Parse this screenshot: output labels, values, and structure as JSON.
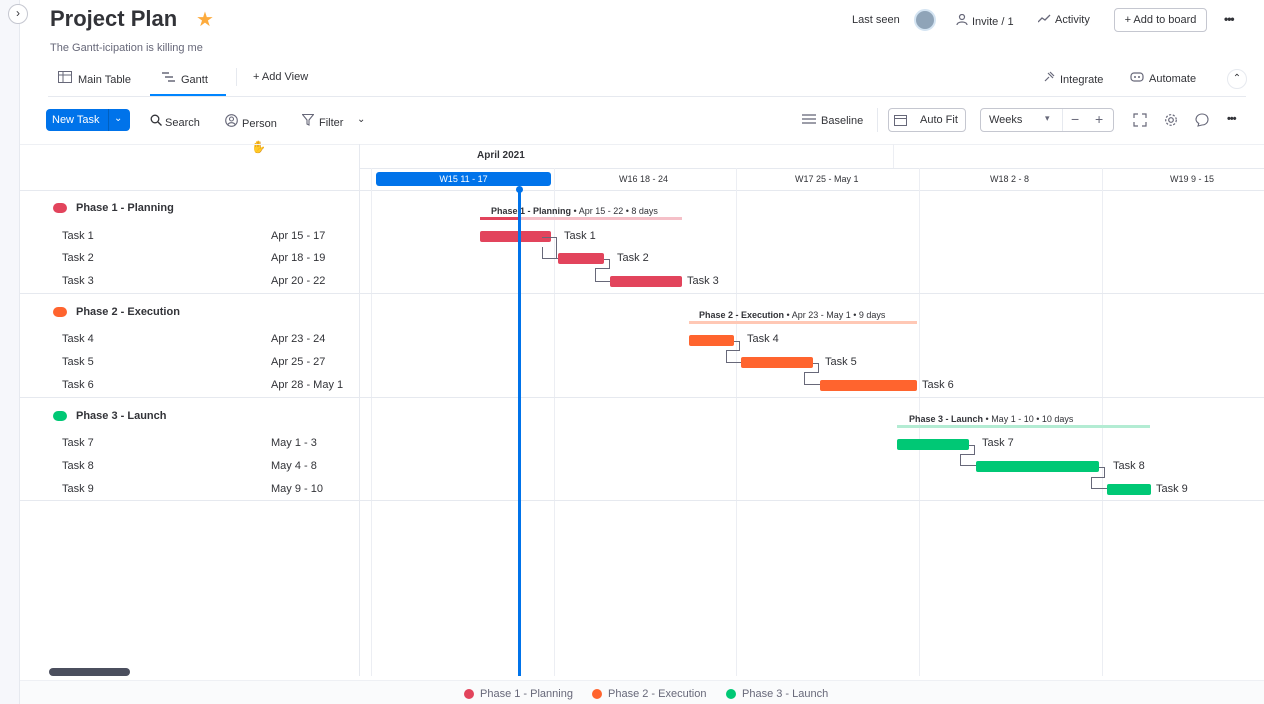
{
  "board": {
    "title": "Project Plan",
    "description": "The Gantt-icipation is killing me"
  },
  "header": {
    "last_seen_label": "Last seen",
    "invite_label": "Invite / 1",
    "activity_label": "Activity",
    "add_to_board_label": "+ Add to board",
    "more_label": "•••"
  },
  "tabs": {
    "main_table": "Main Table",
    "gantt": "Gantt",
    "add_view": "+ Add View",
    "integrate": "Integrate",
    "automate": "Automate"
  },
  "toolbar": {
    "new_task": "New Task",
    "search": "Search",
    "person": "Person",
    "filter": "Filter",
    "baseline": "Baseline",
    "auto_fit": "Auto Fit",
    "zoom_selected": "Weeks",
    "more": "•••"
  },
  "timeline": {
    "month": "April 2021",
    "weeks": [
      "W15  11 - 17",
      "W16  18 - 24",
      "W17  25 - May 1",
      "W18  2 - 8",
      "W19  9 - 15"
    ]
  },
  "phases": [
    {
      "name": "Phase 1 - Planning",
      "color": "#e2445c",
      "summary": "Apr 15 - 22 • 8 days",
      "tasks": [
        {
          "name": "Task 1",
          "dates": "Apr 15 - 17"
        },
        {
          "name": "Task 2",
          "dates": "Apr 18 - 19"
        },
        {
          "name": "Task 3",
          "dates": "Apr 20 - 22"
        }
      ]
    },
    {
      "name": "Phase 2 - Execution",
      "color": "#ff642e",
      "summary": "Apr 23 - May 1 • 9 days",
      "tasks": [
        {
          "name": "Task 4",
          "dates": "Apr 23 - 24"
        },
        {
          "name": "Task 5",
          "dates": "Apr 25 - 27"
        },
        {
          "name": "Task 6",
          "dates": "Apr 28 - May 1"
        }
      ]
    },
    {
      "name": "Phase 3 - Launch",
      "color": "#00c875",
      "summary": "May 1 - 10 • 10 days",
      "tasks": [
        {
          "name": "Task 7",
          "dates": "May 1 - 3"
        },
        {
          "name": "Task 8",
          "dates": "May 4 - 8"
        },
        {
          "name": "Task 9",
          "dates": "May 9 - 10"
        }
      ]
    }
  ],
  "legend": [
    "Phase 1 - Planning",
    "Phase 2 - Execution",
    "Phase 3 - Launch"
  ],
  "colors": {
    "primary": "#0073ea",
    "phase1": "#e2445c",
    "phase2": "#ff642e",
    "phase3": "#00c875",
    "star": "#fdab3d"
  }
}
